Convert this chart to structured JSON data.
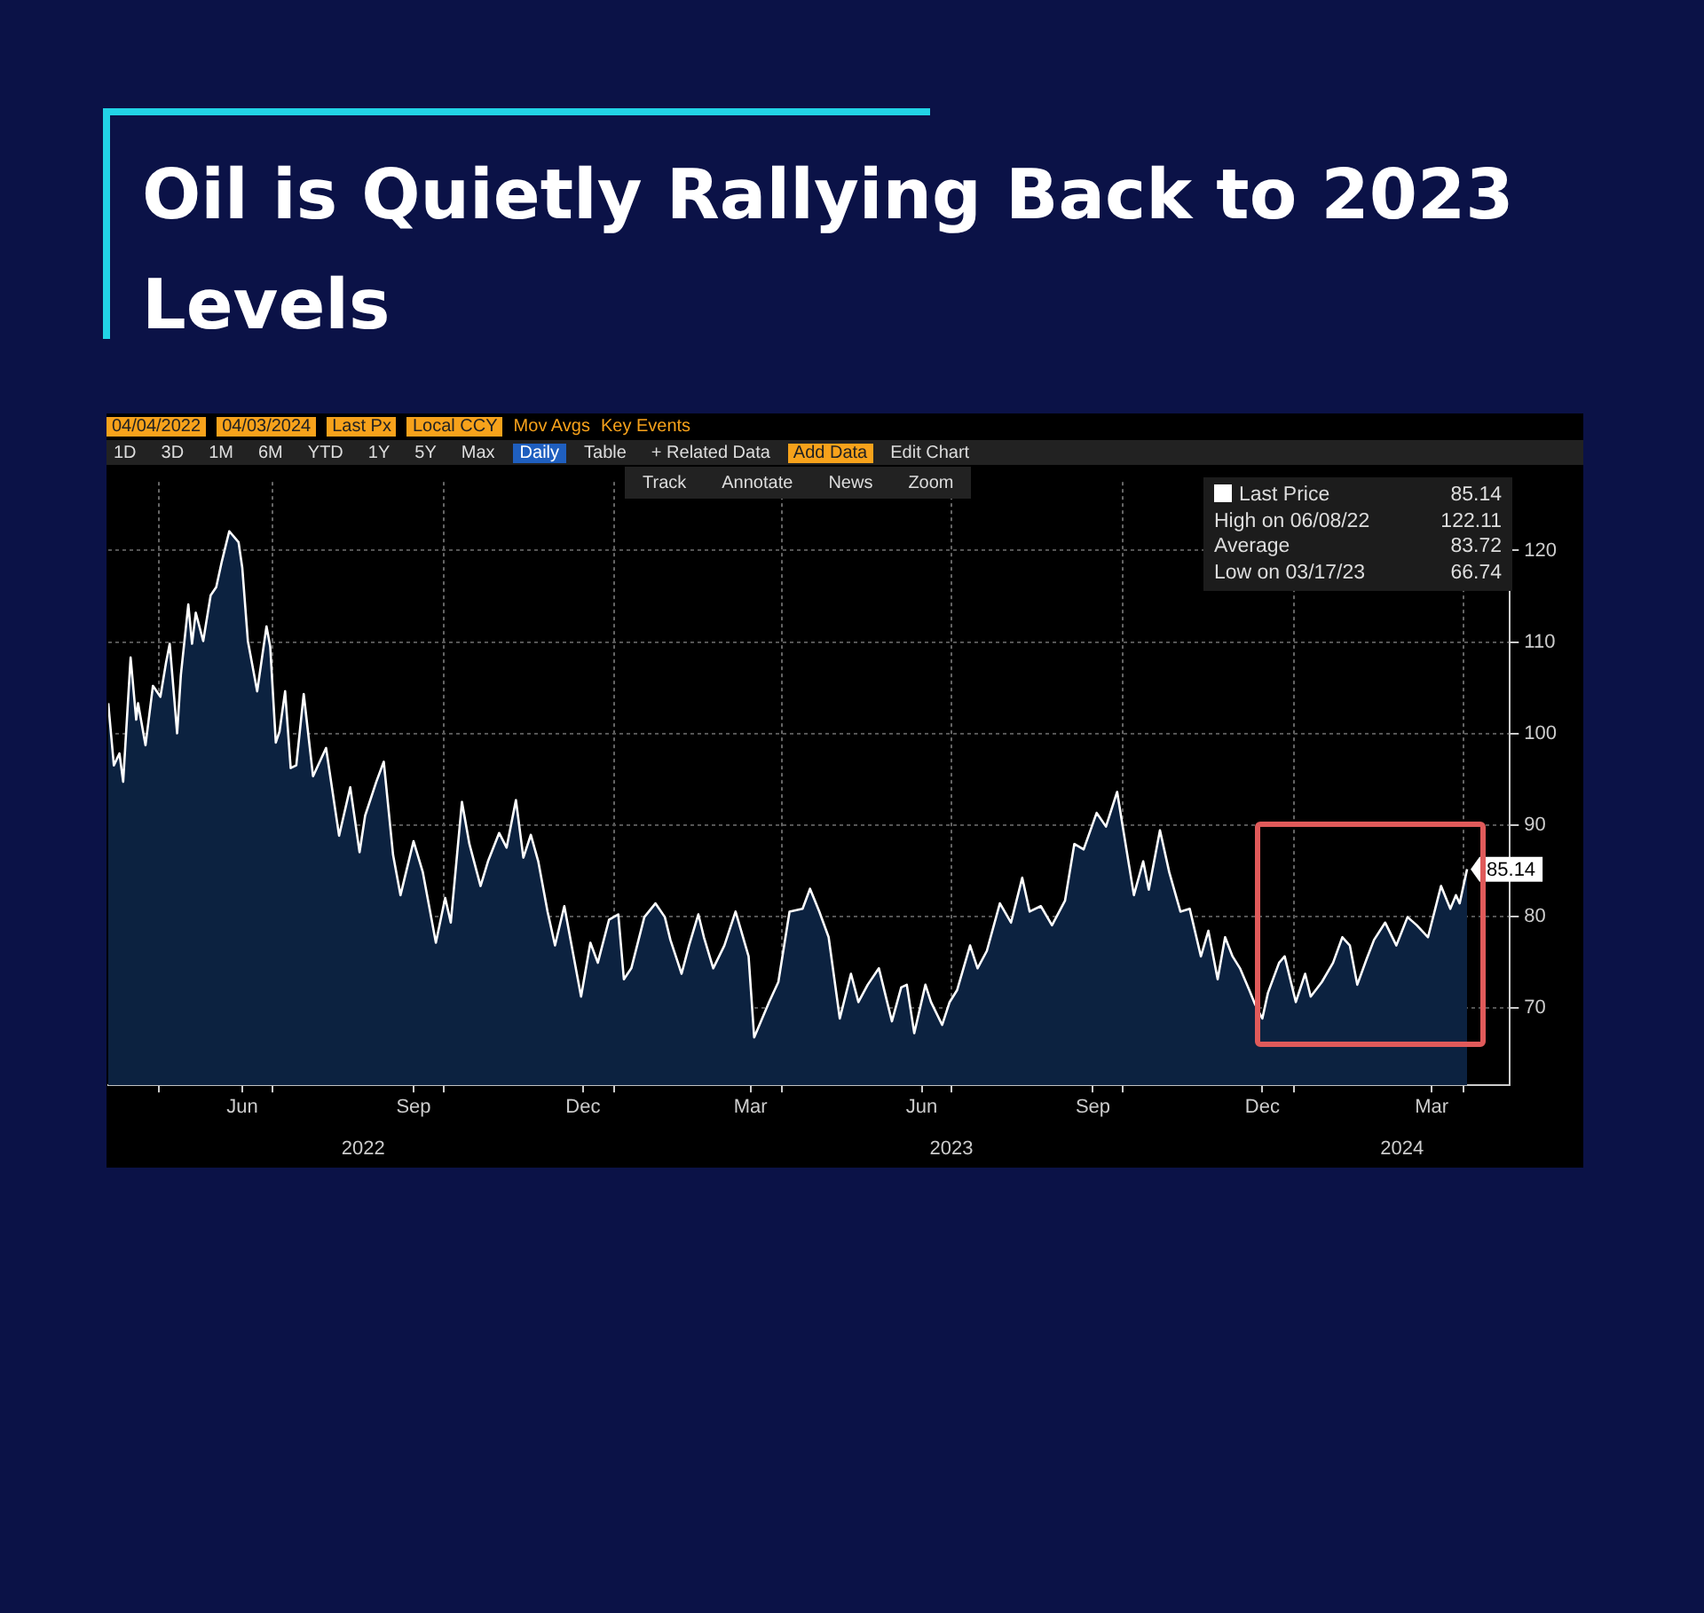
{
  "chart_data": {
    "type": "area",
    "title": "Oil is Quietly Rallying Back to 2023 Levels",
    "x": [
      "2022-04-04",
      "2022-04-07",
      "2022-04-10",
      "2022-04-12",
      "2022-04-16",
      "2022-04-19",
      "2022-04-20",
      "2022-04-24",
      "2022-04-28",
      "2022-05-02",
      "2022-05-05",
      "2022-05-07",
      "2022-05-11",
      "2022-05-13",
      "2022-05-17",
      "2022-05-19",
      "2022-05-21",
      "2022-05-25",
      "2022-05-29",
      "2022-06-01",
      "2022-06-04",
      "2022-06-08",
      "2022-06-13",
      "2022-06-15",
      "2022-06-18",
      "2022-06-23",
      "2022-06-28",
      "2022-06-30",
      "2022-07-03",
      "2022-07-05",
      "2022-07-08",
      "2022-07-11",
      "2022-07-14",
      "2022-07-18",
      "2022-07-23",
      "2022-07-30",
      "2022-08-06",
      "2022-08-12",
      "2022-08-17",
      "2022-08-20",
      "2022-08-26",
      "2022-08-30",
      "2022-09-04",
      "2022-09-08",
      "2022-09-15",
      "2022-09-20",
      "2022-09-27",
      "2022-10-02",
      "2022-10-05",
      "2022-10-11",
      "2022-10-15",
      "2022-10-21",
      "2022-10-25",
      "2022-10-31",
      "2022-11-04",
      "2022-11-09",
      "2022-11-13",
      "2022-11-17",
      "2022-11-21",
      "2022-11-26",
      "2022-11-30",
      "2022-12-05",
      "2022-12-14",
      "2022-12-19",
      "2022-12-23",
      "2022-12-29",
      "2023-01-03",
      "2023-01-06",
      "2023-01-10",
      "2023-01-17",
      "2023-01-23",
      "2023-01-28",
      "2023-01-31",
      "2023-02-06",
      "2023-02-10",
      "2023-02-15",
      "2023-02-18",
      "2023-02-23",
      "2023-03-01",
      "2023-03-07",
      "2023-03-14",
      "2023-03-17",
      "2023-03-25",
      "2023-03-30",
      "2023-04-05",
      "2023-04-12",
      "2023-04-16",
      "2023-04-21",
      "2023-04-26",
      "2023-05-02",
      "2023-05-08",
      "2023-05-12",
      "2023-05-17",
      "2023-05-23",
      "2023-05-30",
      "2023-06-04",
      "2023-06-07",
      "2023-06-11",
      "2023-06-17",
      "2023-06-20",
      "2023-06-26",
      "2023-06-30",
      "2023-07-04",
      "2023-07-11",
      "2023-07-15",
      "2023-07-20",
      "2023-07-27",
      "2023-08-02",
      "2023-08-08",
      "2023-08-12",
      "2023-08-18",
      "2023-08-24",
      "2023-08-31",
      "2023-09-05",
      "2023-09-10",
      "2023-09-17",
      "2023-09-22",
      "2023-09-28",
      "2023-10-01",
      "2023-10-07",
      "2023-10-12",
      "2023-10-15",
      "2023-10-21",
      "2023-10-26",
      "2023-11-01",
      "2023-11-06",
      "2023-11-12",
      "2023-11-16",
      "2023-11-21",
      "2023-11-25",
      "2023-11-29",
      "2023-12-03",
      "2023-12-08",
      "2023-12-11",
      "2023-12-15",
      "2023-12-18",
      "2023-12-24",
      "2023-12-27",
      "2024-01-02",
      "2024-01-07",
      "2024-01-10",
      "2024-01-16",
      "2024-01-22",
      "2024-01-27",
      "2024-01-31",
      "2024-02-04",
      "2024-02-09",
      "2024-02-13",
      "2024-02-19",
      "2024-02-25",
      "2024-03-02",
      "2024-03-07",
      "2024-03-13",
      "2024-03-20",
      "2024-03-25",
      "2024-03-28",
      "2024-03-30",
      "2024-04-03"
    ],
    "series": [
      {
        "name": "Last Price",
        "color": "#ffffff",
        "values": [
          103.3,
          96.5,
          97.8,
          94.7,
          108.3,
          101.5,
          103.3,
          98.7,
          105.2,
          104.0,
          107.7,
          109.8,
          100.0,
          106.4,
          114.1,
          109.8,
          113.2,
          110.1,
          115.1,
          116.0,
          118.8,
          122.11,
          120.9,
          118.1,
          110.1,
          104.6,
          111.7,
          109.5,
          99.0,
          100.2,
          104.6,
          96.2,
          96.5,
          104.3,
          95.3,
          98.4,
          88.8,
          94.1,
          87.0,
          91.0,
          94.7,
          96.9,
          86.7,
          82.3,
          88.2,
          84.8,
          77.1,
          82.0,
          79.3,
          92.5,
          87.9,
          83.3,
          86.0,
          89.1,
          87.5,
          92.7,
          86.4,
          88.9,
          86.0,
          80.5,
          76.8,
          81.1,
          71.2,
          77.1,
          74.9,
          79.6,
          80.2,
          73.1,
          74.3,
          79.9,
          81.4,
          79.9,
          77.4,
          73.7,
          76.8,
          80.2,
          77.7,
          74.3,
          76.8,
          80.5,
          75.6,
          66.74,
          70.6,
          72.8,
          80.5,
          80.8,
          83.0,
          80.5,
          77.7,
          68.8,
          73.7,
          70.6,
          72.5,
          74.3,
          68.5,
          72.2,
          72.5,
          67.2,
          72.5,
          70.6,
          68.1,
          70.6,
          71.9,
          76.8,
          74.3,
          76.2,
          81.4,
          79.3,
          84.2,
          80.5,
          81.1,
          79.0,
          81.7,
          87.9,
          87.3,
          91.3,
          89.8,
          93.6,
          89.8,
          82.3,
          86.0,
          82.9,
          89.4,
          84.8,
          80.5,
          80.8,
          75.6,
          78.4,
          73.1,
          77.7,
          75.6,
          74.3,
          71.9,
          70.4,
          68.8,
          71.6,
          74.9,
          75.6,
          70.6,
          73.7,
          71.2,
          72.8,
          74.9,
          77.7,
          76.8,
          72.5,
          75.3,
          77.4,
          79.3,
          76.8,
          79.9,
          79.0,
          77.7,
          83.3,
          80.8,
          82.3,
          81.4,
          85.14
        ]
      }
    ],
    "xlim": [
      "2022-04-04",
      "2024-04-26"
    ],
    "xticks": [
      {
        "value": "2022-05-01",
        "label": null
      },
      {
        "value": "2022-06-15",
        "label": "Jun"
      },
      {
        "value": "2022-07-01",
        "label": null
      },
      {
        "value": "2022-09-15",
        "label": "Sep"
      },
      {
        "value": "2022-10-01",
        "label": null
      },
      {
        "value": "2022-12-15",
        "label": "Dec"
      },
      {
        "value": "2023-01-01",
        "label": null
      },
      {
        "value": "2023-03-15",
        "label": "Mar"
      },
      {
        "value": "2023-04-01",
        "label": null
      },
      {
        "value": "2023-06-15",
        "label": "Jun"
      },
      {
        "value": "2023-07-01",
        "label": null
      },
      {
        "value": "2023-09-15",
        "label": "Sep"
      },
      {
        "value": "2023-10-01",
        "label": null
      },
      {
        "value": "2023-12-15",
        "label": "Dec"
      },
      {
        "value": "2024-01-01",
        "label": null
      },
      {
        "value": "2024-03-15",
        "label": "Mar"
      },
      {
        "value": "2024-04-01",
        "label": null
      }
    ],
    "x2lim": [
      "2022-04-04",
      "2024-04-26"
    ],
    "x2ticks": [
      {
        "value": "2022-08-19",
        "label": "2022"
      },
      {
        "value": "2023-07-01",
        "label": "2023"
      },
      {
        "value": "2024-02-28",
        "label": "2024"
      }
    ],
    "ylim": [
      61.5,
      127.5
    ],
    "yticks": [
      70,
      80,
      90,
      100,
      110,
      120
    ],
    "grid": true,
    "legend": "top right",
    "marker": "none",
    "line_style": "solid",
    "annotations": [
      "04/04/2022",
      "04/03/2024",
      "Last Px",
      "Local CCY",
      "Mov Avgs",
      "Key Events",
      "1D",
      "3D",
      "1M",
      "6M",
      "YTD",
      "1Y",
      "5Y",
      "Max",
      "Daily",
      "Table",
      "+ Related Data",
      "Add Data",
      "Edit Chart",
      "Track",
      "Annotate",
      "News",
      "Zoom",
      "85.14",
      "High on 06/08/22",
      "122.11",
      "Average",
      "83.72",
      "Low on 03/17/23",
      "66.74",
      {
        "text": "85.14",
        "x": "2024-04-03",
        "y": 85.14
      }
    ]
  }
}
